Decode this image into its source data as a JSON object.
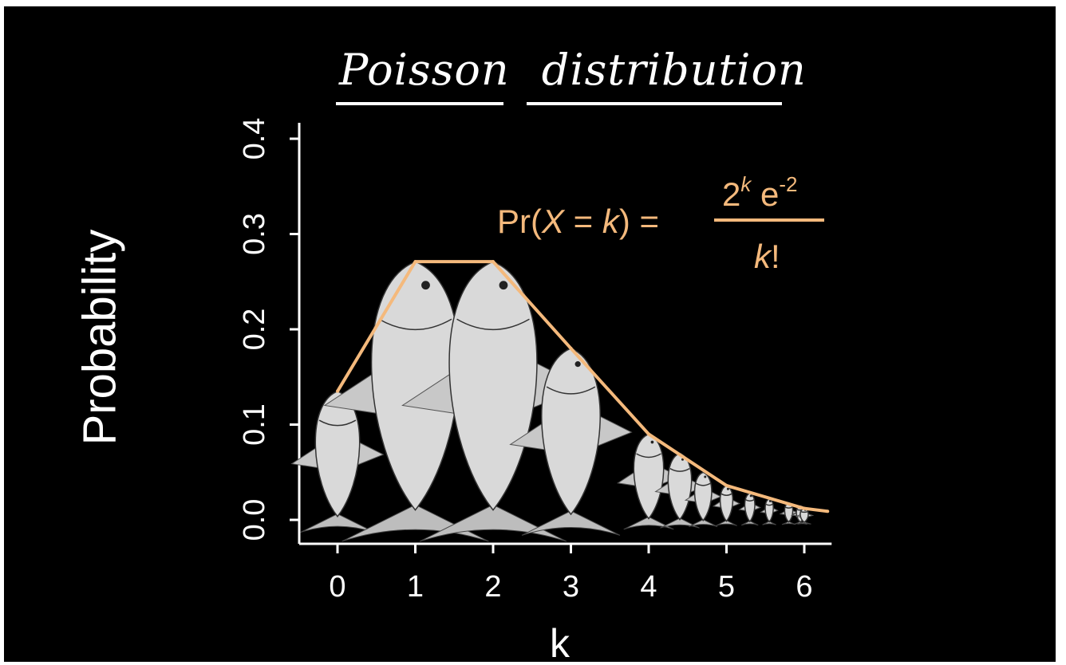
{
  "chart_data": {
    "type": "line",
    "title": "Poisson distribution",
    "xlabel": "k",
    "ylabel": "Probability",
    "formula": {
      "lhs_prefix": "Pr(",
      "lhs_var": "X",
      "lhs_eq": " = ",
      "lhs_k": "k",
      "lhs_suffix": ") =",
      "num_base": "2",
      "num_exp": "k",
      "num_e": "e",
      "num_e_exp": "-2",
      "den_k": "k",
      "den_bang": "!"
    },
    "x_ticks": [
      "0",
      "1",
      "2",
      "3",
      "4",
      "5",
      "6"
    ],
    "y_ticks": [
      "0.0",
      "0.1",
      "0.2",
      "0.3",
      "0.4"
    ],
    "xlim": [
      -0.5,
      6.3
    ],
    "ylim": [
      0,
      0.4
    ],
    "x": [
      0,
      1,
      2,
      3,
      4,
      5,
      6,
      6.3
    ],
    "values": [
      0.135,
      0.271,
      0.271,
      0.18,
      0.09,
      0.036,
      0.012,
      0.009
    ],
    "fish_x": [
      0,
      1,
      2,
      3,
      4,
      4.4,
      4.7,
      5,
      5.3,
      5.55,
      5.8,
      5.95,
      6
    ],
    "fish_y": [
      0.135,
      0.271,
      0.271,
      0.18,
      0.09,
      0.07,
      0.05,
      0.036,
      0.028,
      0.022,
      0.018,
      0.015,
      0.012
    ],
    "line_color": "#f4b97c",
    "fish_color": "#d9d9d9",
    "grid": false
  }
}
